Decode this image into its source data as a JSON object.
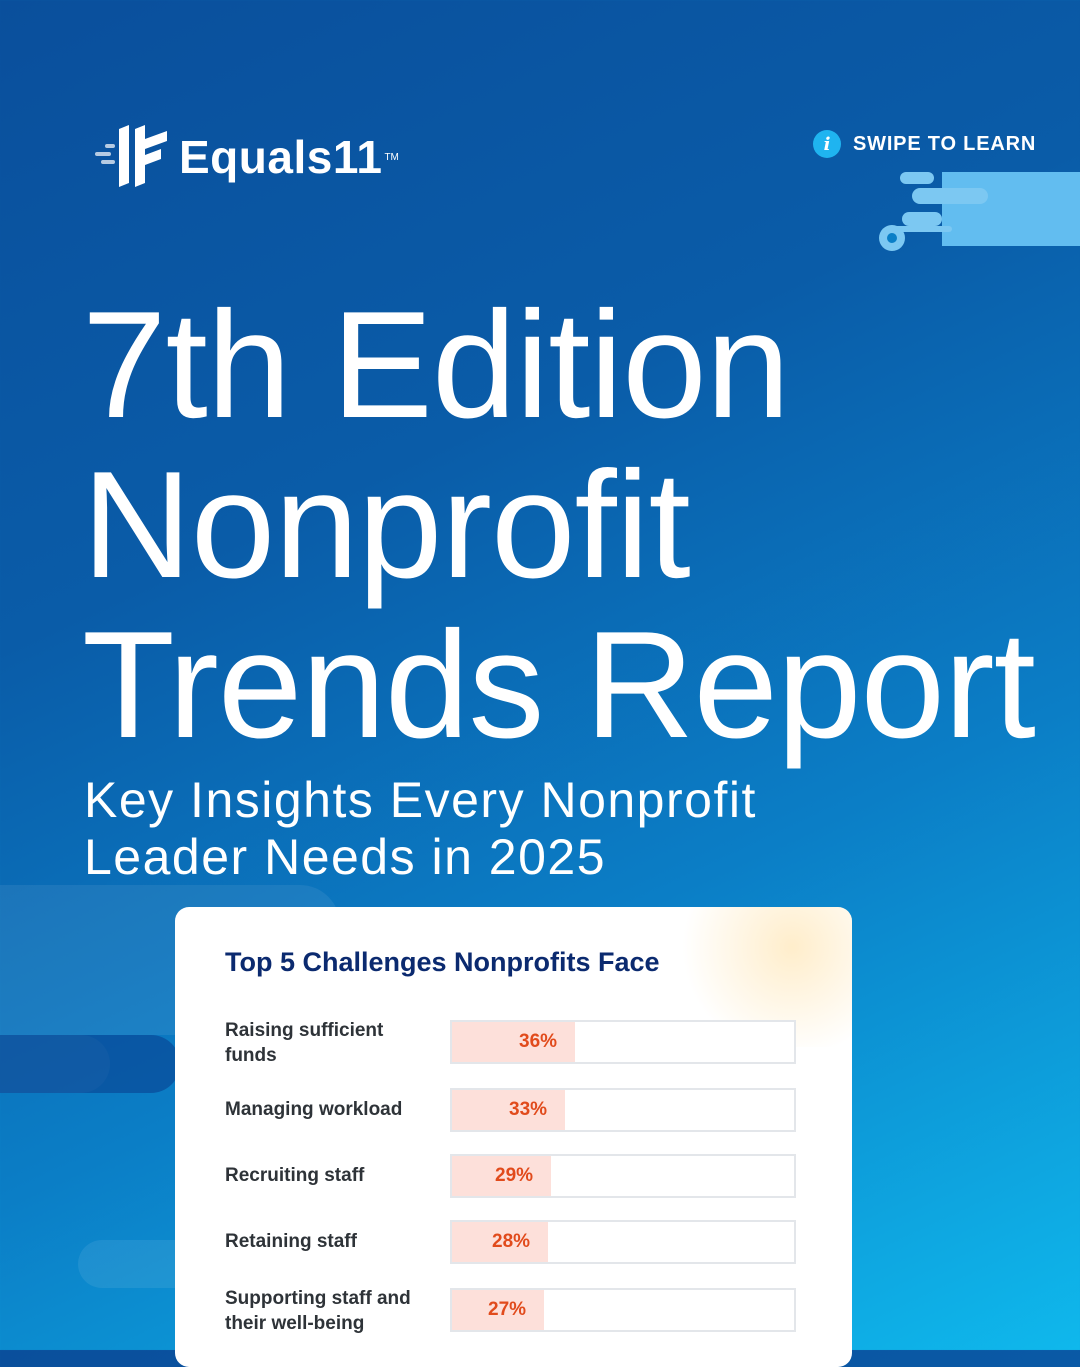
{
  "brand": {
    "name": "Equals11",
    "trademark": "TM"
  },
  "swipe": {
    "icon": "info-icon",
    "label": "SWIPE TO LEARN"
  },
  "title_lines": [
    "7th Edition",
    "Nonprofit",
    "Trends Report"
  ],
  "subtitle_lines": [
    "Key Insights Every Nonprofit",
    "Leader Needs in 2025"
  ],
  "colors": {
    "accent": "#1fb4f0",
    "card_title": "#0b2a6f",
    "bar_fill": "#fde0da",
    "bar_value": "#e14b1c"
  },
  "chart_data": {
    "type": "bar",
    "orientation": "horizontal",
    "title": "Top 5 Challenges Nonprofits Face",
    "categories": [
      [
        "Raising sufficient",
        "funds"
      ],
      [
        "Managing workload"
      ],
      [
        "Recruiting staff"
      ],
      [
        "Retaining staff"
      ],
      [
        "Supporting staff and",
        "their well-being"
      ]
    ],
    "values": [
      36,
      33,
      29,
      28,
      27
    ],
    "value_labels": [
      "36%",
      "33%",
      "29%",
      "28%",
      "27%"
    ],
    "xlim": [
      0,
      100
    ],
    "unit": "%"
  }
}
